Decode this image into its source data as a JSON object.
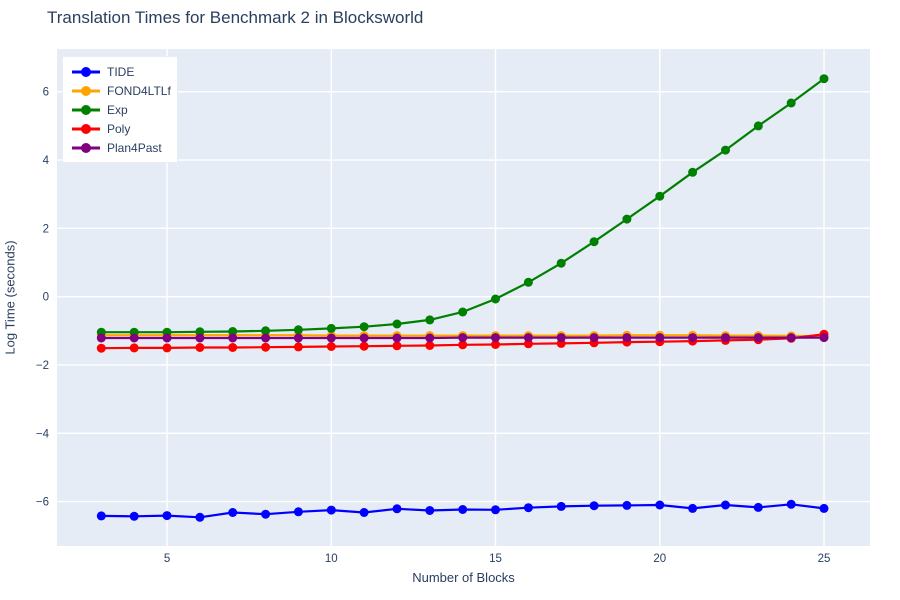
{
  "chart_data": {
    "type": "line",
    "title": "Translation Times for Benchmark 2 in Blocksworld",
    "xlabel": "Number of Blocks",
    "ylabel": "Log Time (seconds)",
    "x": [
      3,
      4,
      5,
      6,
      7,
      8,
      9,
      10,
      11,
      12,
      13,
      14,
      15,
      16,
      17,
      18,
      19,
      20,
      21,
      22,
      23,
      24,
      25
    ],
    "series": [
      {
        "name": "TIDE",
        "color": "#0000ff",
        "values": [
          -6.42,
          -6.43,
          -6.41,
          -6.46,
          -6.32,
          -6.37,
          -6.3,
          -6.25,
          -6.32,
          -6.21,
          -6.26,
          -6.23,
          -6.24,
          -6.18,
          -6.14,
          -6.12,
          -6.11,
          -6.1,
          -6.2,
          -6.1,
          -6.17,
          -6.08,
          -6.2
        ]
      },
      {
        "name": "FOND4LTLf",
        "color": "#ffa500",
        "values": [
          -1.13,
          -1.13,
          -1.13,
          -1.13,
          -1.13,
          -1.13,
          -1.13,
          -1.14,
          -1.14,
          -1.14,
          -1.14,
          -1.14,
          -1.14,
          -1.14,
          -1.14,
          -1.14,
          -1.13,
          -1.13,
          -1.13,
          -1.14,
          -1.14,
          -1.15,
          -1.16
        ]
      },
      {
        "name": "Exp",
        "color": "#008000",
        "values": [
          -1.04,
          -1.04,
          -1.04,
          -1.03,
          -1.02,
          -1.0,
          -0.97,
          -0.93,
          -0.88,
          -0.8,
          -0.68,
          -0.45,
          -0.07,
          0.42,
          0.98,
          1.61,
          2.27,
          2.94,
          3.64,
          4.29,
          5.0,
          5.67,
          6.38
        ]
      },
      {
        "name": "Poly",
        "color": "#ff0000",
        "values": [
          -1.51,
          -1.5,
          -1.5,
          -1.49,
          -1.49,
          -1.48,
          -1.47,
          -1.46,
          -1.45,
          -1.44,
          -1.43,
          -1.41,
          -1.4,
          -1.38,
          -1.37,
          -1.35,
          -1.33,
          -1.32,
          -1.3,
          -1.28,
          -1.26,
          -1.22,
          -1.1
        ]
      },
      {
        "name": "Plan4Past",
        "color": "#800080",
        "values": [
          -1.21,
          -1.21,
          -1.21,
          -1.21,
          -1.21,
          -1.21,
          -1.21,
          -1.21,
          -1.21,
          -1.21,
          -1.21,
          -1.2,
          -1.2,
          -1.2,
          -1.2,
          -1.2,
          -1.2,
          -1.2,
          -1.2,
          -1.2,
          -1.2,
          -1.2,
          -1.2
        ]
      }
    ],
    "x_ticks": [
      5,
      10,
      15,
      20,
      25
    ],
    "y_ticks": [
      -6,
      -4,
      -2,
      0,
      2,
      4,
      6
    ],
    "xlim": [
      1.65,
      26.4
    ],
    "ylim": [
      -7.3,
      7.25
    ],
    "grid": true,
    "legend_position": "top-left",
    "plot_bg": "#e5ecf6",
    "grid_color": "#ffffff",
    "text_color": "#2a3f5f"
  }
}
